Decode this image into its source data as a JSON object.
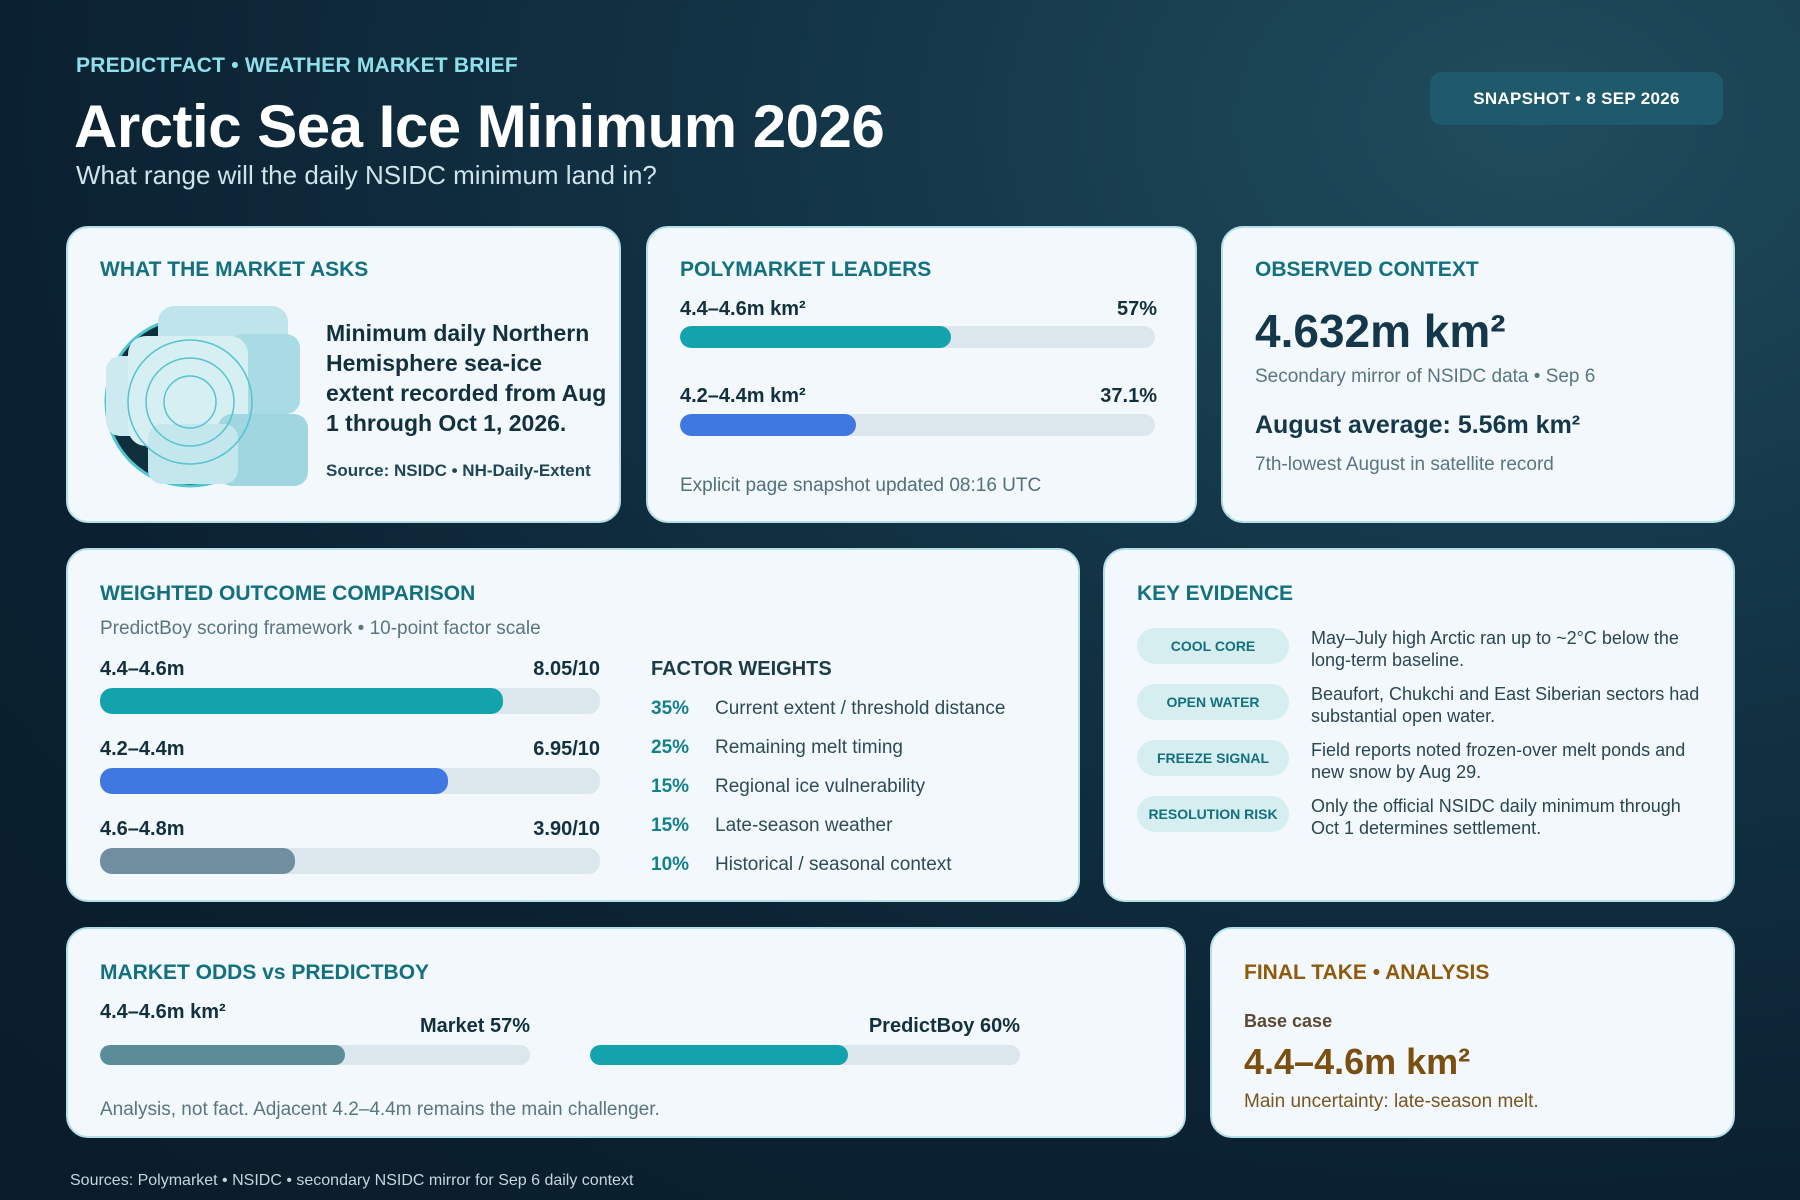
{
  "header": {
    "kicker": "PREDICTFACT • WEATHER MARKET BRIEF",
    "title": "Arctic Sea Ice Minimum 2026",
    "subtitle": "What range will the daily NSIDC minimum land in?",
    "snapshot": "SNAPSHOT • 8 SEP 2026"
  },
  "market_asks": {
    "title": "WHAT THE MARKET ASKS",
    "text": "Minimum daily Northern Hemisphere sea-ice extent recorded from Aug 1 through Oct 1, 2026.",
    "source": "Source: NSIDC • NH-Daily-Extent",
    "icon": "sea-ice-globe-icon"
  },
  "leaders": {
    "title": "POLYMARKET LEADERS",
    "items": [
      {
        "label": "4.4–4.6m km²",
        "value": "57%",
        "fraction": 0.57,
        "color": "#14a3ad"
      },
      {
        "label": "4.2–4.4m km²",
        "value": "37.1%",
        "fraction": 0.371,
        "color": "#3f78e0"
      }
    ],
    "footnote": "Explicit page snapshot updated 08:16 UTC"
  },
  "observed": {
    "title": "OBSERVED CONTEXT",
    "value": "4.632m km²",
    "value_note": "Secondary mirror of NSIDC data • Sep 6",
    "august": "August average: 5.56m km²",
    "august_note": "7th-lowest August in satellite record"
  },
  "weighted": {
    "title": "WEIGHTED OUTCOME COMPARISON",
    "subtitle": "PredictBoy scoring framework • 10-point factor scale",
    "outcomes": [
      {
        "label": "4.4–4.6m",
        "score": "8.05/10",
        "fraction": 0.805,
        "color": "#14a3ad"
      },
      {
        "label": "4.2–4.4m",
        "score": "6.95/10",
        "fraction": 0.695,
        "color": "#3f78e0"
      },
      {
        "label": "4.6–4.8m",
        "score": "3.90/10",
        "fraction": 0.39,
        "color": "#718da0"
      }
    ],
    "factor_title": "FACTOR WEIGHTS",
    "factors": [
      {
        "pct": "35%",
        "label": "Current extent / threshold distance"
      },
      {
        "pct": "25%",
        "label": "Remaining melt timing"
      },
      {
        "pct": "15%",
        "label": "Regional ice vulnerability"
      },
      {
        "pct": "15%",
        "label": "Late-season weather"
      },
      {
        "pct": "10%",
        "label": "Historical / seasonal context"
      }
    ]
  },
  "evidence": {
    "title": "KEY EVIDENCE",
    "items": [
      {
        "tag": "COOL CORE",
        "text": "May–July high Arctic ran up to ~2°C below the long-term baseline."
      },
      {
        "tag": "OPEN WATER",
        "text": "Beaufort, Chukchi and East Siberian sectors had substantial open water."
      },
      {
        "tag": "FREEZE SIGNAL",
        "text": "Field reports noted frozen-over melt ponds and new snow by Aug 29."
      },
      {
        "tag": "RESOLUTION RISK",
        "text": "Only the official NSIDC daily minimum through Oct 1 determines settlement."
      }
    ]
  },
  "odds": {
    "title": "MARKET ODDS vs PREDICTBOY",
    "range": "4.4–4.6m km²",
    "market_label": "Market 57%",
    "market_fraction": 0.57,
    "market_color": "#5b8d99",
    "predictboy_label": "PredictBoy 60%",
    "predictboy_fraction": 0.6,
    "predictboy_color": "#14a3ad",
    "note": "Analysis, not fact. Adjacent 4.2–4.4m remains the main challenger."
  },
  "final": {
    "title": "FINAL TAKE • ANALYSIS",
    "base_label": "Base case",
    "base_value": "4.4–4.6m km²",
    "note": "Main uncertainty: late-season melt."
  },
  "sources": "Sources: Polymarket • NSIDC • secondary NSIDC mirror for Sep 6 daily context"
}
